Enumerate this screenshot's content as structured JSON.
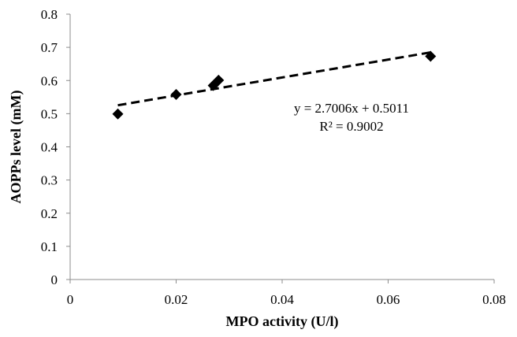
{
  "chart_data": {
    "type": "scatter",
    "xlabel": "MPO activity (U/l)",
    "ylabel": "AOPPs level (mM)",
    "xlim": [
      0,
      0.08
    ],
    "ylim": [
      0,
      0.8
    ],
    "x_ticks": [
      "0",
      "0.02",
      "0.04",
      "0.06",
      "0.08"
    ],
    "y_ticks": [
      "0",
      "0.1",
      "0.2",
      "0.3",
      "0.4",
      "0.5",
      "0.6",
      "0.7",
      "0.8"
    ],
    "grid": false,
    "marker": "diamond",
    "points": [
      {
        "x": 0.009,
        "y": 0.499
      },
      {
        "x": 0.02,
        "y": 0.558
      },
      {
        "x": 0.027,
        "y": 0.585
      },
      {
        "x": 0.028,
        "y": 0.601
      },
      {
        "x": 0.068,
        "y": 0.673
      }
    ],
    "trendline": {
      "style": "dashed",
      "slope": 2.7006,
      "intercept": 0.5011,
      "x_range": [
        0.009,
        0.068
      ]
    },
    "annotations": {
      "equation": "y = 2.7006x + 0.5011",
      "r_squared": "R² = 0.9002"
    }
  },
  "colors": {
    "axis": "#8c8c8c",
    "marker": "#000000",
    "trendline": "#000000"
  }
}
